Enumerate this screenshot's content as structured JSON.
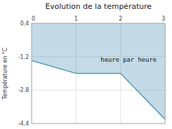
{
  "chart_data": {
    "type": "area",
    "title": "Evolution de la température",
    "y_label": "Température en °C",
    "x": [
      0,
      1,
      2,
      3
    ],
    "values": [
      -1.38,
      -2.0,
      -2.0,
      -4.2
    ],
    "fill_top": 0.4,
    "xlim": [
      0,
      3
    ],
    "ylim": [
      -4.4,
      0.4
    ],
    "xticks": [
      0,
      1,
      2,
      3
    ],
    "yticks": [
      0.4,
      -1.2,
      -2.8,
      -4.4
    ],
    "grid": true,
    "color": "#5599bb",
    "annotations": [
      {
        "text": "heure par heure",
        "x": 1.55,
        "y": -1.15
      }
    ]
  }
}
